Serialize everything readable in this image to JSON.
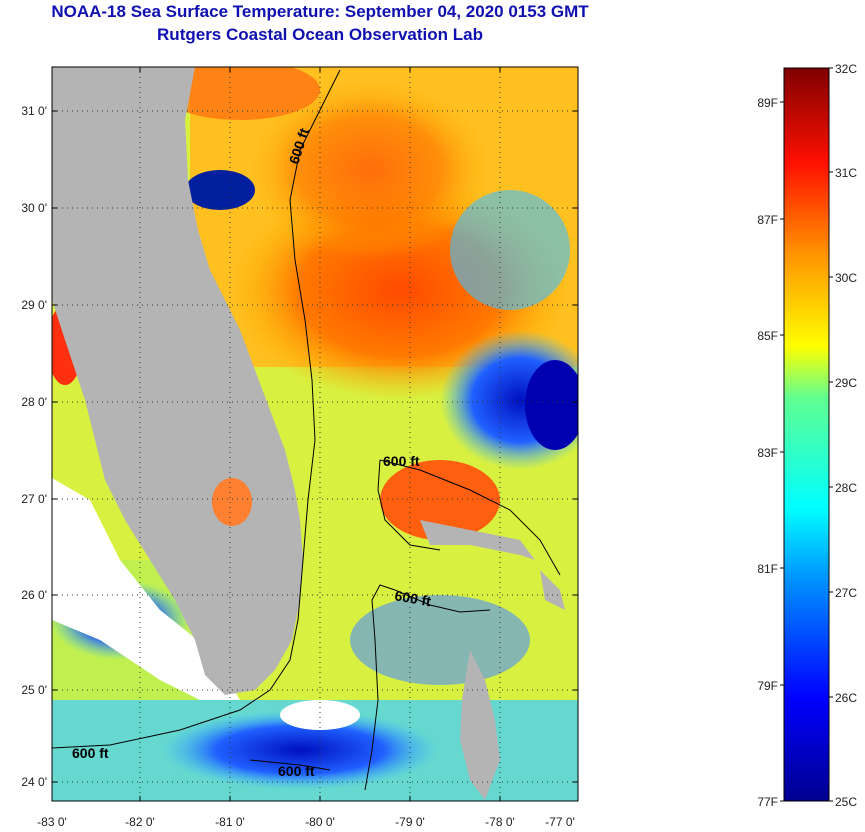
{
  "title": "NOAA-18 Sea Surface Temperature:  September 04, 2020 0153 GMT",
  "subtitle": "Rutgers Coastal Ocean Observation Lab",
  "lat_labels": [
    "31 0'",
    "30 0'",
    "29 0'",
    "28 0'",
    "27 0'",
    "26 0'",
    "25 0'",
    "24 0'"
  ],
  "lon_labels": [
    "-83 0'",
    "-82 0'",
    "-81 0'",
    "-80 0'",
    "-79 0'",
    "-78 0'",
    "-77 0'"
  ],
  "contour_label": "600 ft",
  "colorbar": {
    "celsius_labels": [
      "32C",
      "31C",
      "30C",
      "29C",
      "28C",
      "27C",
      "26C",
      "25C"
    ],
    "fahrenheit_labels": [
      "89F",
      "87F",
      "85F",
      "83F",
      "81F",
      "79F",
      "77F"
    ]
  }
}
